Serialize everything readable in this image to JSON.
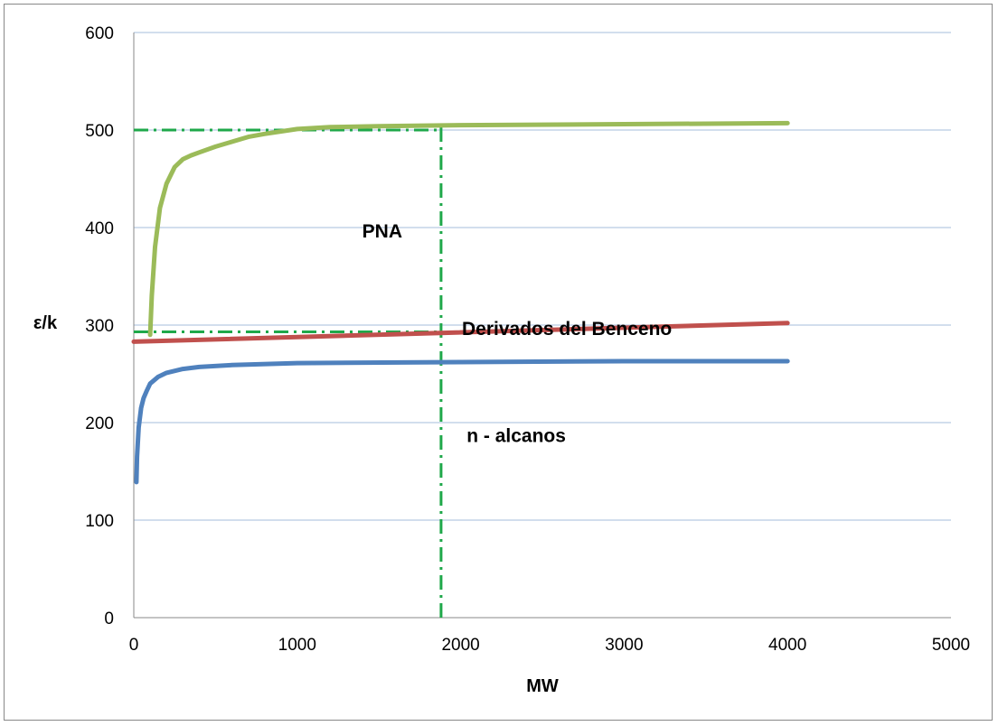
{
  "chart_data": {
    "type": "line",
    "xlabel": "MW",
    "ylabel": "ε/k",
    "xlim": [
      0,
      5000
    ],
    "ylim": [
      0,
      600
    ],
    "x_ticks": [
      0,
      1000,
      2000,
      3000,
      4000,
      5000
    ],
    "y_ticks": [
      0,
      100,
      200,
      300,
      400,
      500,
      600
    ],
    "grid": "horizontal",
    "legend": "none",
    "series": [
      {
        "key": "pna",
        "color": "#9BBB59",
        "x": [
          100,
          110,
          130,
          160,
          200,
          250,
          300,
          350,
          400,
          500,
          600,
          700,
          800,
          1000,
          1200,
          1500,
          2000,
          3000,
          4000
        ],
        "y": [
          290,
          330,
          380,
          420,
          445,
          462,
          470,
          474,
          477,
          483,
          488,
          493,
          496,
          501,
          503,
          504,
          505,
          506,
          507
        ]
      },
      {
        "key": "benceno",
        "color": "#C0504D",
        "x": [
          0,
          4000
        ],
        "y": [
          283,
          302
        ]
      },
      {
        "key": "alcanos",
        "color": "#4F81BD",
        "x": [
          16,
          20,
          30,
          45,
          60,
          80,
          100,
          150,
          200,
          300,
          400,
          600,
          1000,
          2000,
          3000,
          4000
        ],
        "y": [
          139,
          165,
          195,
          215,
          225,
          233,
          240,
          247,
          251,
          255,
          257,
          259,
          261,
          262,
          263,
          263
        ]
      }
    ],
    "reference_lines": [
      {
        "key": "h500",
        "x": [
          0,
          1880
        ],
        "y": [
          500,
          500
        ]
      },
      {
        "key": "h293",
        "x": [
          0,
          1880
        ],
        "y": [
          293,
          293
        ]
      },
      {
        "key": "v1880",
        "x": [
          1880,
          1880
        ],
        "y": [
          0,
          505
        ]
      }
    ],
    "reference_color": "#1FA84A",
    "annotations": [
      {
        "key": "pna_label",
        "text": "PNA",
        "x": 1520,
        "y": 390
      },
      {
        "key": "benceno_label",
        "text": "Derivados del Benceno",
        "x": 2650,
        "y": 290
      },
      {
        "key": "alcanos_label",
        "text": "n - alcanos",
        "x": 2340,
        "y": 180
      }
    ]
  }
}
